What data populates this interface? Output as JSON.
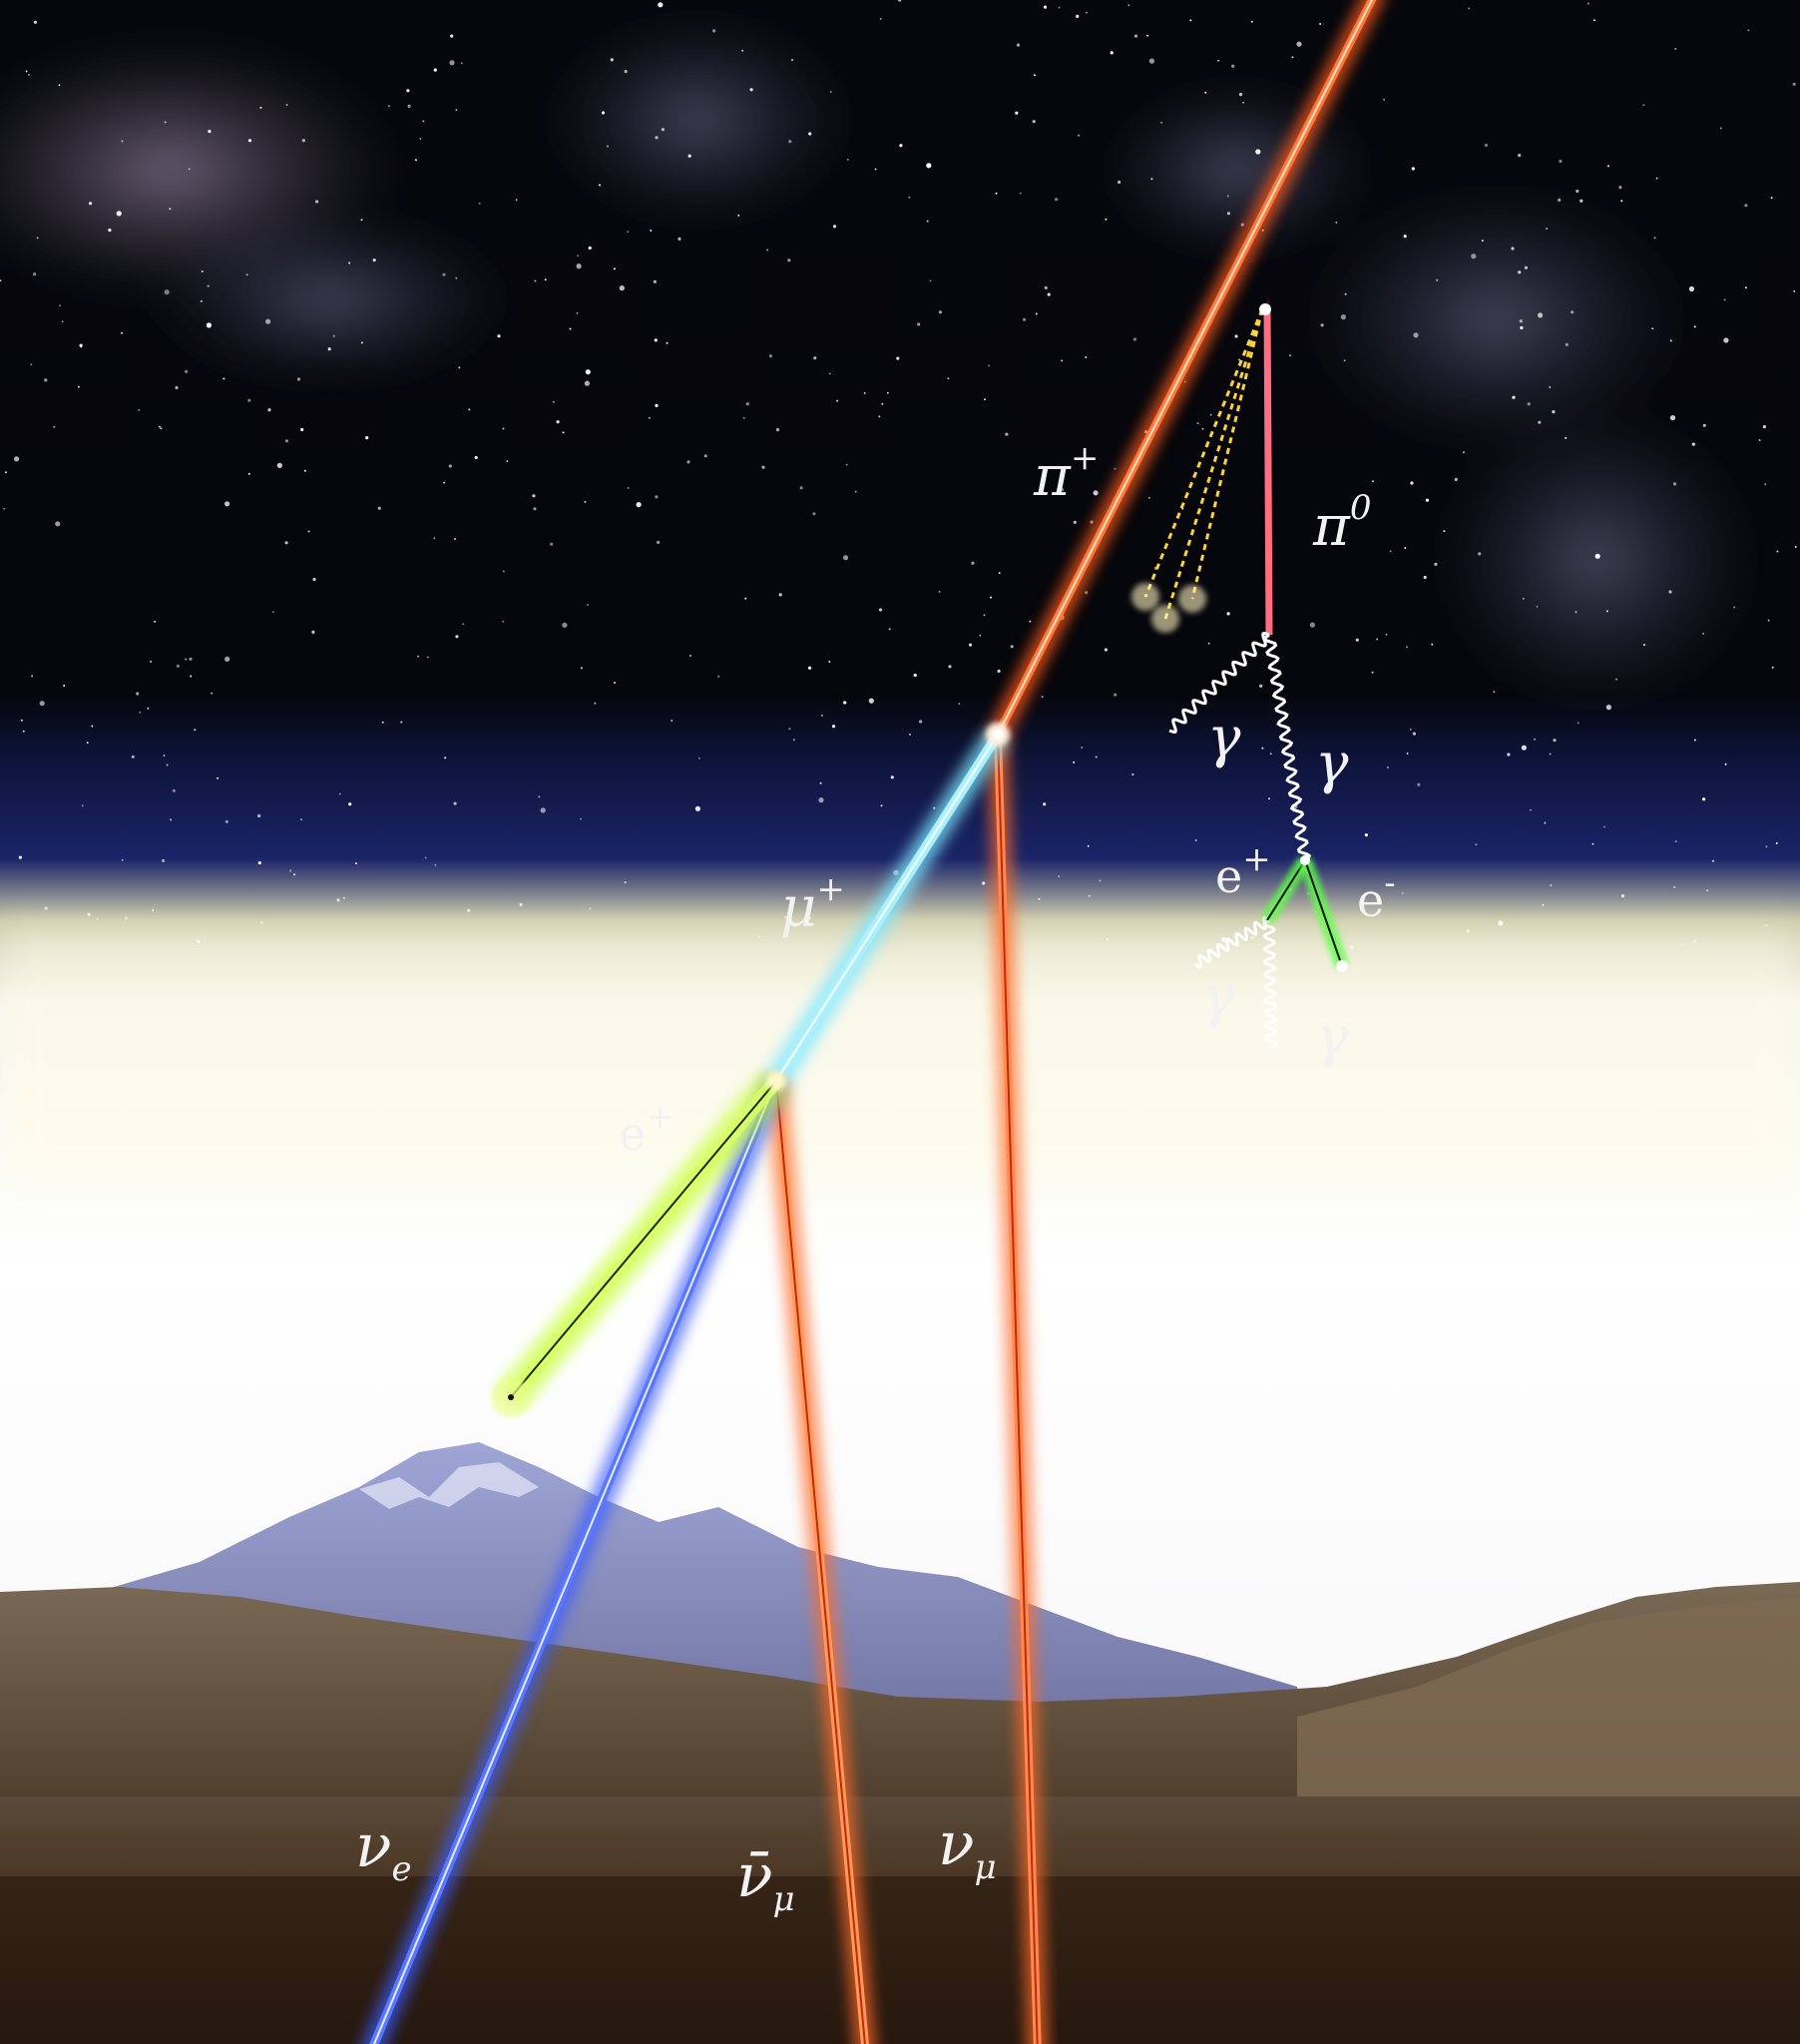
{
  "labels": {
    "pi_plus": "π",
    "pi_plus_sup": "+",
    "pi_zero": "π",
    "pi_zero_sup": "0",
    "mu_plus": "μ",
    "mu_plus_sup": "+",
    "e_plus_muon_decay": "e",
    "e_plus_muon_decay_sup": "+",
    "gamma_left_top": "γ",
    "gamma_right_top": "γ",
    "e_plus_pair": "e",
    "e_plus_pair_sup": "+",
    "e_minus_pair": "e",
    "e_minus_pair_sup": "-",
    "gamma_left_bottom": "γ",
    "gamma_right_bottom": "γ",
    "nu_e": "ν",
    "nu_e_sub": "e",
    "nu_mu_bar": "ν̄",
    "nu_mu_bar_sub": "μ",
    "nu_mu": "ν",
    "nu_mu_sub": "μ"
  },
  "colors": {
    "pion_track": "#ff5a1e",
    "pi_zero_track": "#ff4d6a",
    "muon_track": "#7fe8ff",
    "positron_track": "#c8ff3a",
    "electron_neutrino_track": "#3b5bff",
    "muon_neutrino_track": "#ff6a2a",
    "pair_track": "#5dff4a",
    "photon_track": "#ffffff",
    "secondary_fan": "#ffd23a"
  }
}
